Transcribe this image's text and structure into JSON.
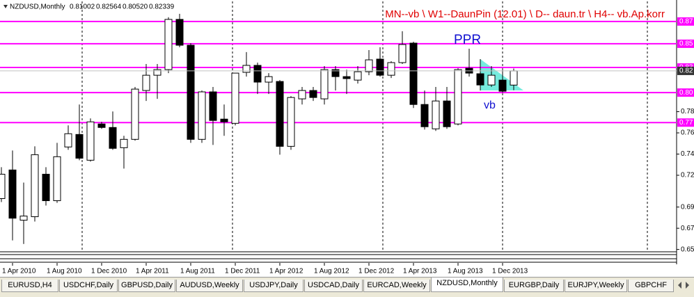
{
  "header": {
    "symbol": "NZDUSD,Monthly",
    "values": [
      "0.81002",
      "0.82564",
      "0.80520",
      "0.82339"
    ]
  },
  "chart_data": {
    "type": "candlestick",
    "categories": [
      null,
      "1 Apr 2010",
      null,
      null,
      null,
      "1 Aug 2010",
      null,
      null,
      null,
      "1 Dec 2010",
      null,
      null,
      null,
      "1 Apr 2011",
      null,
      null,
      null,
      "1 Aug 2011",
      null,
      null,
      null,
      "1 Dec 2011",
      null,
      null,
      null,
      "1 Apr 2012",
      null,
      null,
      null,
      "1 Aug 2012",
      null,
      null,
      null,
      "1 Dec 2012",
      null,
      null,
      null,
      "1 Apr 2013",
      null,
      null,
      null,
      "1 Aug 2013",
      null,
      null,
      null,
      "1 Dec 2013",
      null
    ],
    "open": [
      0.7029,
      0.7299,
      0.6825,
      0.6858,
      0.7259,
      0.7009,
      0.7516,
      0.7634,
      0.7391,
      0.7733,
      0.77,
      0.7509,
      0.7588,
      0.8049,
      0.8193,
      0.8246,
      0.872,
      0.8476,
      0.7588,
      0.8036,
      0.7779,
      0.7739,
      0.822,
      0.8286,
      0.8128,
      0.8134,
      0.7522,
      0.797,
      0.8049,
      0.797,
      0.8246,
      0.818,
      0.8147,
      0.8226,
      0.8345,
      0.8193,
      0.8312,
      0.8496,
      0.7917,
      0.7687,
      0.795,
      0.7733,
      0.8259,
      0.8207,
      0.8101,
      0.8147,
      0.81
    ],
    "high": [
      0.7325,
      0.7483,
      0.718,
      0.7522,
      0.7325,
      0.7555,
      0.772,
      0.7917,
      0.7785,
      0.7753,
      0.7851,
      0.7621,
      0.8082,
      0.8299,
      0.8299,
      0.874,
      0.8772,
      0.8496,
      0.8049,
      0.8082,
      0.7917,
      0.8213,
      0.8411,
      0.8312,
      0.8213,
      0.8147,
      0.7996,
      0.8082,
      0.8082,
      0.8279,
      0.8279,
      0.8246,
      0.8279,
      0.843,
      0.8457,
      0.8325,
      0.8608,
      0.8509,
      0.8049,
      0.8082,
      0.8082,
      0.8259,
      0.8443,
      0.8345,
      0.8279,
      0.8246,
      0.8256
    ],
    "low": [
      0.6996,
      0.6634,
      0.6601,
      0.6812,
      0.6963,
      0.6989,
      0.7489,
      0.7391,
      0.7378,
      0.7687,
      0.7489,
      0.7312,
      0.7575,
      0.795,
      0.797,
      0.8213,
      0.8457,
      0.7555,
      0.7555,
      0.7535,
      0.7621,
      0.772,
      0.818,
      0.8016,
      0.8016,
      0.7443,
      0.7489,
      0.7917,
      0.795,
      0.7917,
      0.8049,
      0.8016,
      0.8114,
      0.8193,
      0.818,
      0.8167,
      0.8299,
      0.7884,
      0.768,
      0.7667,
      0.7687,
      0.772,
      0.818,
      0.8049,
      0.8082,
      0.8029,
      0.8052
    ],
    "close": [
      0.7259,
      0.6844,
      0.6864,
      0.7443,
      0.7009,
      0.7424,
      0.7641,
      0.741,
      0.7753,
      0.77,
      0.7503,
      0.7588,
      0.8062,
      0.8193,
      0.8246,
      0.872,
      0.8476,
      0.7588,
      0.8036,
      0.7766,
      0.7753,
      0.8213,
      0.8286,
      0.8128,
      0.818,
      0.7522,
      0.7983,
      0.8049,
      0.7983,
      0.8246,
      0.818,
      0.8161,
      0.8226,
      0.8338,
      0.8193,
      0.8312,
      0.8483,
      0.7917,
      0.7707,
      0.795,
      0.7707,
      0.8246,
      0.8213,
      0.8101,
      0.8193,
      0.8042,
      0.8234
    ],
    "up_color": "#ffffff",
    "down_color": "#000000",
    "ylim": [
      0.654,
      0.887
    ],
    "yticks": [
      {
        "value": 0.7849,
        "label": "0.78"
      },
      {
        "value": 0.7649,
        "label": "0.76"
      },
      {
        "value": 0.7449,
        "label": "0.74"
      },
      {
        "value": 0.7249,
        "label": "0.72"
      },
      {
        "value": 0.6949,
        "label": "0.69"
      },
      {
        "value": 0.6749,
        "label": "0.67"
      },
      {
        "value": 0.6549,
        "label": "0.65"
      }
    ],
    "levels": [
      {
        "value": 0.87,
        "label": "0.87"
      },
      {
        "value": 0.849,
        "label": "0.85"
      },
      {
        "value": 0.8266,
        "label": "0.83"
      },
      {
        "value": 0.8029,
        "label": "0.80"
      },
      {
        "value": 0.7746,
        "label": "0.77"
      }
    ],
    "level_color": "#ff00ff",
    "last_price": {
      "value": 0.82339,
      "label": "0.82"
    },
    "annotations": {
      "setup": "MN--vb \\ W1--DaunPin (12.01) \\ D-- daun.tr  \\ H4-- vb.Ap.korr",
      "ppr": "PPR",
      "vb": "vb"
    }
  },
  "tabs": [
    "EURUSD,H4",
    "USDCHF,Daily",
    "GBPUSD,Daily",
    "AUDUSD,Weekly",
    "USDJPY,Daily",
    "USDCAD,Daily",
    "EURCAD,Weekly",
    "NZDUSD,Monthly",
    "EURGBP,Daily",
    "EURJPY,Weekly",
    "GBPCHF"
  ],
  "active_tab": 7
}
